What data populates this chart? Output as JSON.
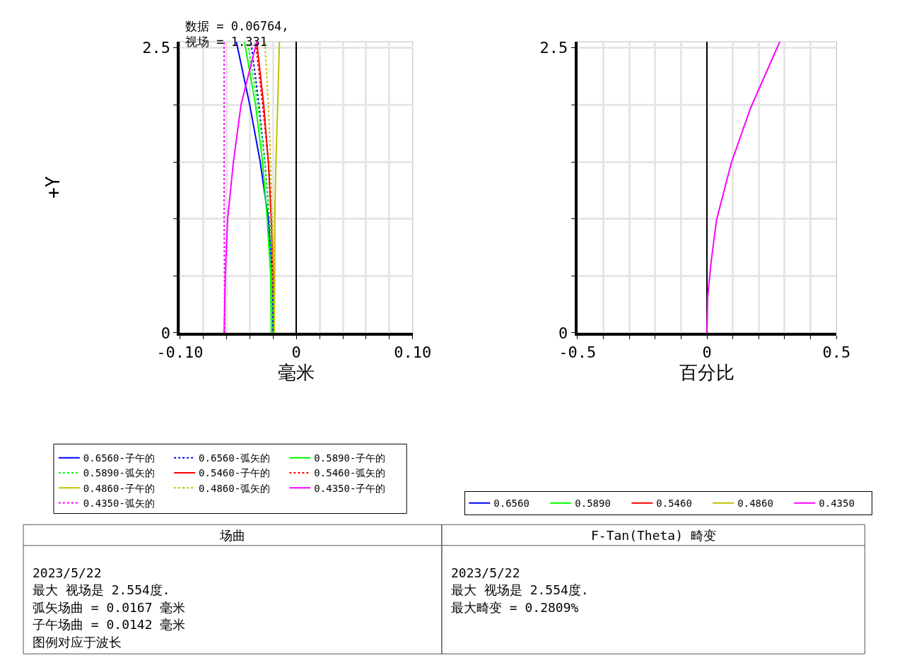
{
  "chart_data": [
    {
      "type": "line",
      "xlabel": "毫米",
      "ylabel": "+Y",
      "xlim": [
        -0.1,
        0.1
      ],
      "ylim": [
        0,
        2.554
      ],
      "xticks": [
        {
          "value": -0.1,
          "label": "-0.10"
        },
        {
          "value": -0.08,
          "label": null
        },
        {
          "value": -0.06,
          "label": null
        },
        {
          "value": -0.04,
          "label": null
        },
        {
          "value": -0.02,
          "label": null
        },
        0,
        {
          "value": 0.02,
          "label": null
        },
        {
          "value": 0.04,
          "label": null
        },
        {
          "value": 0.06,
          "label": null
        },
        {
          "value": 0.08,
          "label": null
        },
        {
          "value": 0.1,
          "label": "0.10"
        }
      ],
      "yticks": [
        0,
        {
          "value": 0.5,
          "label": null
        },
        {
          "value": 1.0,
          "label": null
        },
        {
          "value": 1.5,
          "label": null
        },
        {
          "value": 2.0,
          "label": null
        },
        2.5
      ],
      "grid": true,
      "legend": "bottom",
      "series": [
        {
          "name": "0.6560-子午的",
          "color": "#0000ff",
          "line_style": "solid",
          "x": [
            -0.02,
            -0.0205,
            -0.024,
            -0.031,
            -0.04,
            -0.0515
          ],
          "values": [
            0,
            0.5,
            1.0,
            1.5,
            2.0,
            2.554
          ]
        },
        {
          "name": "0.6560-弧矢的",
          "color": "#0000ff",
          "line_style": "dotted",
          "x": [
            -0.02,
            -0.021,
            -0.023,
            -0.027,
            -0.032,
            -0.039
          ],
          "values": [
            0,
            0.5,
            1.0,
            1.5,
            2.0,
            2.554
          ]
        },
        {
          "name": "0.5890-子午的",
          "color": "#00ff00",
          "line_style": "solid",
          "x": [
            -0.0215,
            -0.022,
            -0.025,
            -0.029,
            -0.035,
            -0.0445
          ],
          "values": [
            0,
            0.5,
            1.0,
            1.5,
            2.0,
            2.554
          ]
        },
        {
          "name": "0.5890-弧矢的",
          "color": "#00ff00",
          "line_style": "dotted",
          "x": [
            -0.02,
            -0.021,
            -0.023,
            -0.027,
            -0.033,
            -0.042
          ],
          "values": [
            0,
            0.5,
            1.0,
            1.5,
            2.0,
            2.554
          ]
        },
        {
          "name": "0.5460-子午的",
          "color": "#ff0000",
          "line_style": "solid",
          "x": [
            -0.019,
            -0.02,
            -0.0215,
            -0.024,
            -0.028,
            -0.034
          ],
          "values": [
            0,
            0.5,
            1.0,
            1.5,
            2.0,
            2.554
          ]
        },
        {
          "name": "0.5460-弧矢的",
          "color": "#ff0000",
          "line_style": "dotted",
          "x": [
            -0.019,
            -0.0195,
            -0.021,
            -0.024,
            -0.029,
            -0.035
          ],
          "values": [
            0,
            0.5,
            1.0,
            1.5,
            2.0,
            2.554
          ]
        },
        {
          "name": "0.4860-子午的",
          "color": "#bfbf00",
          "line_style": "solid",
          "x": [
            -0.019,
            -0.0185,
            -0.0185,
            -0.0175,
            -0.016,
            -0.0145
          ],
          "values": [
            0,
            0.5,
            1.0,
            1.5,
            2.0,
            2.554
          ]
        },
        {
          "name": "0.4860-弧矢的",
          "color": "#bfbf00",
          "line_style": "dotted",
          "x": [
            -0.019,
            -0.02,
            -0.021,
            -0.022,
            -0.024,
            -0.027
          ],
          "values": [
            0,
            0.5,
            1.0,
            1.5,
            2.0,
            2.554
          ]
        },
        {
          "name": "0.4350-子午的",
          "color": "#ff00ff",
          "line_style": "solid",
          "x": [
            -0.062,
            -0.061,
            -0.059,
            -0.054,
            -0.0475,
            -0.034
          ],
          "values": [
            0,
            0.5,
            1.0,
            1.5,
            2.0,
            2.554
          ]
        },
        {
          "name": "0.4350-弧矢的",
          "color": "#ff00ff",
          "line_style": "dotted",
          "x": [
            -0.0615,
            -0.0617,
            -0.062,
            -0.062,
            -0.062,
            -0.062
          ],
          "values": [
            0,
            0.5,
            1.0,
            1.5,
            2.0,
            2.554
          ]
        }
      ],
      "annotations": [
        "数据 = 0.06764,",
        "视场 = 1.331",
        "场曲",
        "2023/5/22",
        "最大 视场是 2.554度.",
        "弧矢场曲 = 0.0167 毫米",
        "子午场曲 = 0.0142 毫米",
        "图例对应于波长"
      ]
    },
    {
      "type": "line",
      "xlabel": "百分比",
      "xlim": [
        -0.5,
        0.5
      ],
      "ylim": [
        0,
        2.554
      ],
      "xticks": [
        -0.5,
        {
          "value": -0.4,
          "label": null
        },
        {
          "value": -0.3,
          "label": null
        },
        {
          "value": -0.2,
          "label": null
        },
        {
          "value": -0.1,
          "label": null
        },
        0,
        {
          "value": 0.1,
          "label": null
        },
        {
          "value": 0.2,
          "label": null
        },
        {
          "value": 0.3,
          "label": null
        },
        {
          "value": 0.4,
          "label": null
        },
        0.5
      ],
      "yticks": [
        0,
        {
          "value": 0.5,
          "label": null
        },
        {
          "value": 1.0,
          "label": null
        },
        {
          "value": 1.5,
          "label": null
        },
        {
          "value": 2.0,
          "label": null
        },
        2.5
      ],
      "grid": true,
      "legend": "bottom",
      "series": [
        {
          "name": "0.6560",
          "color": "#0000ff",
          "line_style": "solid",
          "x": [
            null
          ],
          "values": [
            null
          ]
        },
        {
          "name": "0.5890",
          "color": "#00ff00",
          "line_style": "solid",
          "x": [
            null
          ],
          "values": [
            null
          ]
        },
        {
          "name": "0.5460",
          "color": "#ff0000",
          "line_style": "solid",
          "x": [
            null
          ],
          "values": [
            null
          ]
        },
        {
          "name": "0.4860",
          "color": "#bfbf00",
          "line_style": "solid",
          "x": [
            null
          ],
          "values": [
            null
          ]
        },
        {
          "name": "0.4350",
          "color": "#ff00ff",
          "line_style": "solid",
          "x": [
            0,
            0.003,
            0.016,
            0.037,
            0.094,
            0.168,
            0.2809
          ],
          "values": [
            0,
            0.32,
            0.62,
            0.99,
            1.49,
            1.97,
            2.554
          ]
        }
      ],
      "annotations": [
        "F-Tan(Theta) 畸变",
        "2023/5/22",
        "最大 视场是 2.554度.",
        "最大畸变 = 0.2809%"
      ]
    }
  ]
}
